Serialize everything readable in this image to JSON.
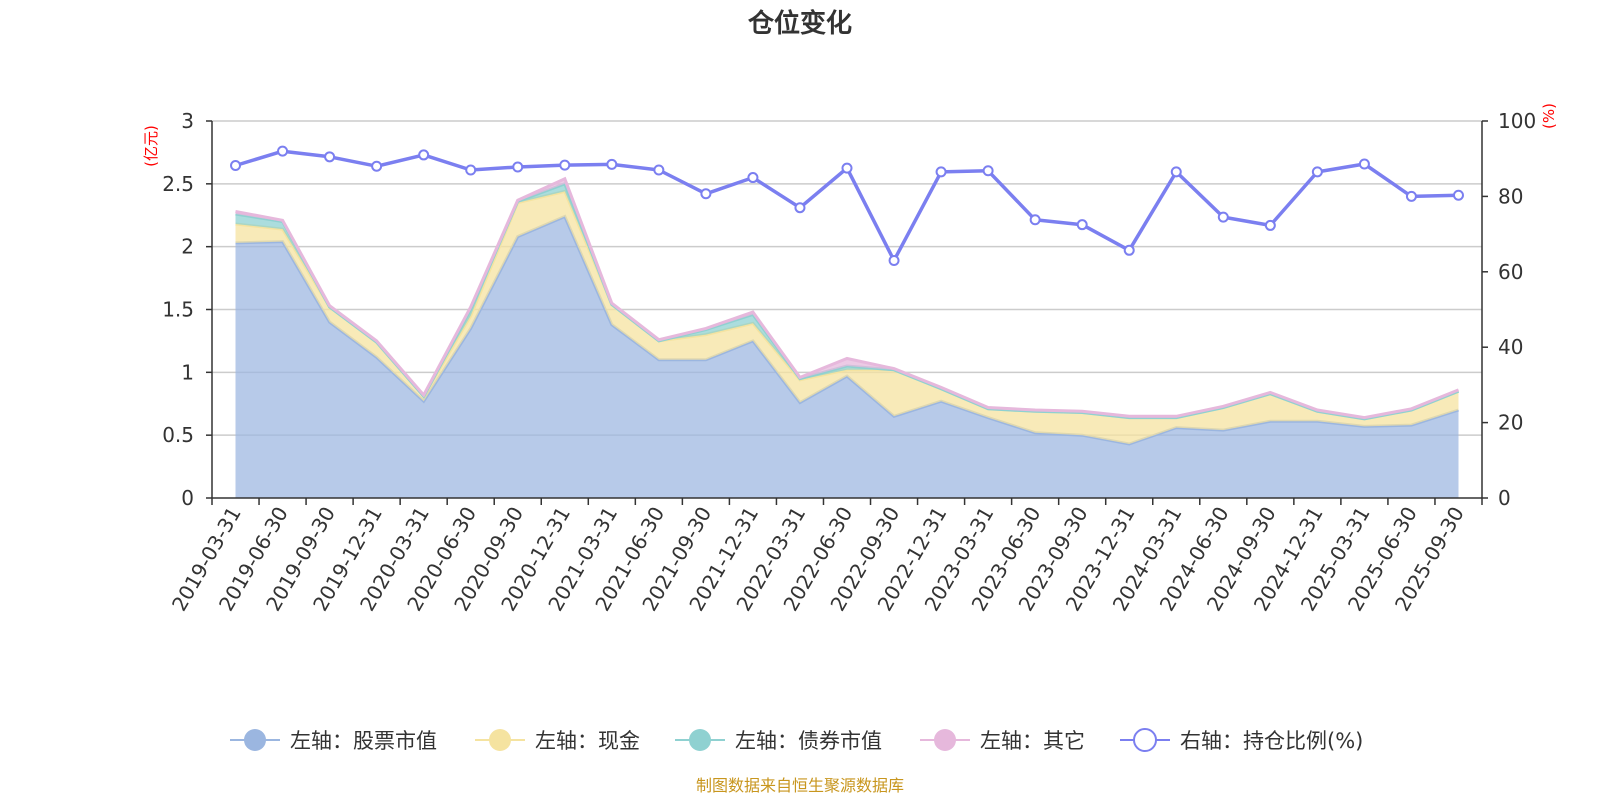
{
  "chart_data": {
    "type": "area",
    "title": "仓位变化",
    "x": [
      "2019-03-31",
      "2019-06-30",
      "2019-09-30",
      "2019-12-31",
      "2020-03-31",
      "2020-06-30",
      "2020-09-30",
      "2020-12-31",
      "2021-03-31",
      "2021-06-30",
      "2021-09-30",
      "2021-12-31",
      "2022-03-31",
      "2022-06-30",
      "2022-09-30",
      "2022-12-31",
      "2023-03-31",
      "2023-06-30",
      "2023-09-30",
      "2023-12-31",
      "2024-03-31",
      "2024-06-30",
      "2024-09-30",
      "2024-12-31",
      "2025-03-31",
      "2025-06-30",
      "2025-09-30"
    ],
    "left_axis": {
      "unit": "(亿元)",
      "ylim": [
        0,
        3
      ],
      "ticks": [
        "0",
        "0.5",
        "1",
        "1.5",
        "2",
        "2.5",
        "3"
      ]
    },
    "right_axis": {
      "unit": "(%)",
      "ylim": [
        0,
        100
      ],
      "ticks": [
        "0",
        "20",
        "40",
        "60",
        "80",
        "100"
      ]
    },
    "grid": true,
    "legend_position": "bottom",
    "series": [
      {
        "name": "左轴：股票市值",
        "axis": "left",
        "kind": "stacked-area",
        "color": "#9bb6e0",
        "values": [
          2.03,
          2.04,
          1.4,
          1.12,
          0.77,
          1.35,
          2.08,
          2.24,
          1.38,
          1.1,
          1.1,
          1.25,
          0.76,
          0.97,
          0.65,
          0.77,
          0.64,
          0.52,
          0.5,
          0.43,
          0.56,
          0.54,
          0.61,
          0.61,
          0.57,
          0.58,
          0.7
        ]
      },
      {
        "name": "左轴：现金",
        "axis": "left",
        "kind": "stacked-area",
        "color": "#f5e3a0",
        "values": [
          0.15,
          0.1,
          0.12,
          0.12,
          0.04,
          0.1,
          0.27,
          0.2,
          0.16,
          0.15,
          0.2,
          0.14,
          0.18,
          0.05,
          0.37,
          0.1,
          0.07,
          0.17,
          0.18,
          0.21,
          0.08,
          0.18,
          0.22,
          0.08,
          0.06,
          0.12,
          0.15
        ]
      },
      {
        "name": "左轴：债券市值",
        "axis": "left",
        "kind": "stacked-area",
        "color": "#8fd1d1",
        "values": [
          0.08,
          0.06,
          0.0,
          0.0,
          0.0,
          0.05,
          0.01,
          0.06,
          0.0,
          0.0,
          0.04,
          0.07,
          0.01,
          0.03,
          0.0,
          0.0,
          0.0,
          0.0,
          0.0,
          0.0,
          0.0,
          0.0,
          0.0,
          0.0,
          0.0,
          0.0,
          0.0
        ]
      },
      {
        "name": "左轴：其它",
        "axis": "left",
        "kind": "stacked-area",
        "color": "#e6b8dc",
        "values": [
          0.02,
          0.01,
          0.01,
          0.01,
          0.01,
          0.02,
          0.01,
          0.04,
          0.01,
          0.01,
          0.01,
          0.02,
          0.01,
          0.06,
          0.01,
          0.01,
          0.01,
          0.01,
          0.01,
          0.01,
          0.01,
          0.01,
          0.01,
          0.01,
          0.01,
          0.01,
          0.01
        ]
      },
      {
        "name": "右轴：持仓比例(%)",
        "axis": "right",
        "kind": "line",
        "color": "#7b7ff0",
        "values": [
          88.2,
          92.0,
          90.5,
          88.0,
          91.0,
          87.0,
          87.8,
          88.3,
          88.5,
          87.0,
          80.7,
          85.0,
          77.0,
          87.5,
          63.0,
          86.5,
          86.8,
          73.8,
          72.5,
          65.7,
          86.5,
          74.5,
          72.3,
          86.5,
          88.6,
          80.0,
          80.3
        ]
      }
    ],
    "source": "制图数据来自恒生聚源数据库"
  }
}
